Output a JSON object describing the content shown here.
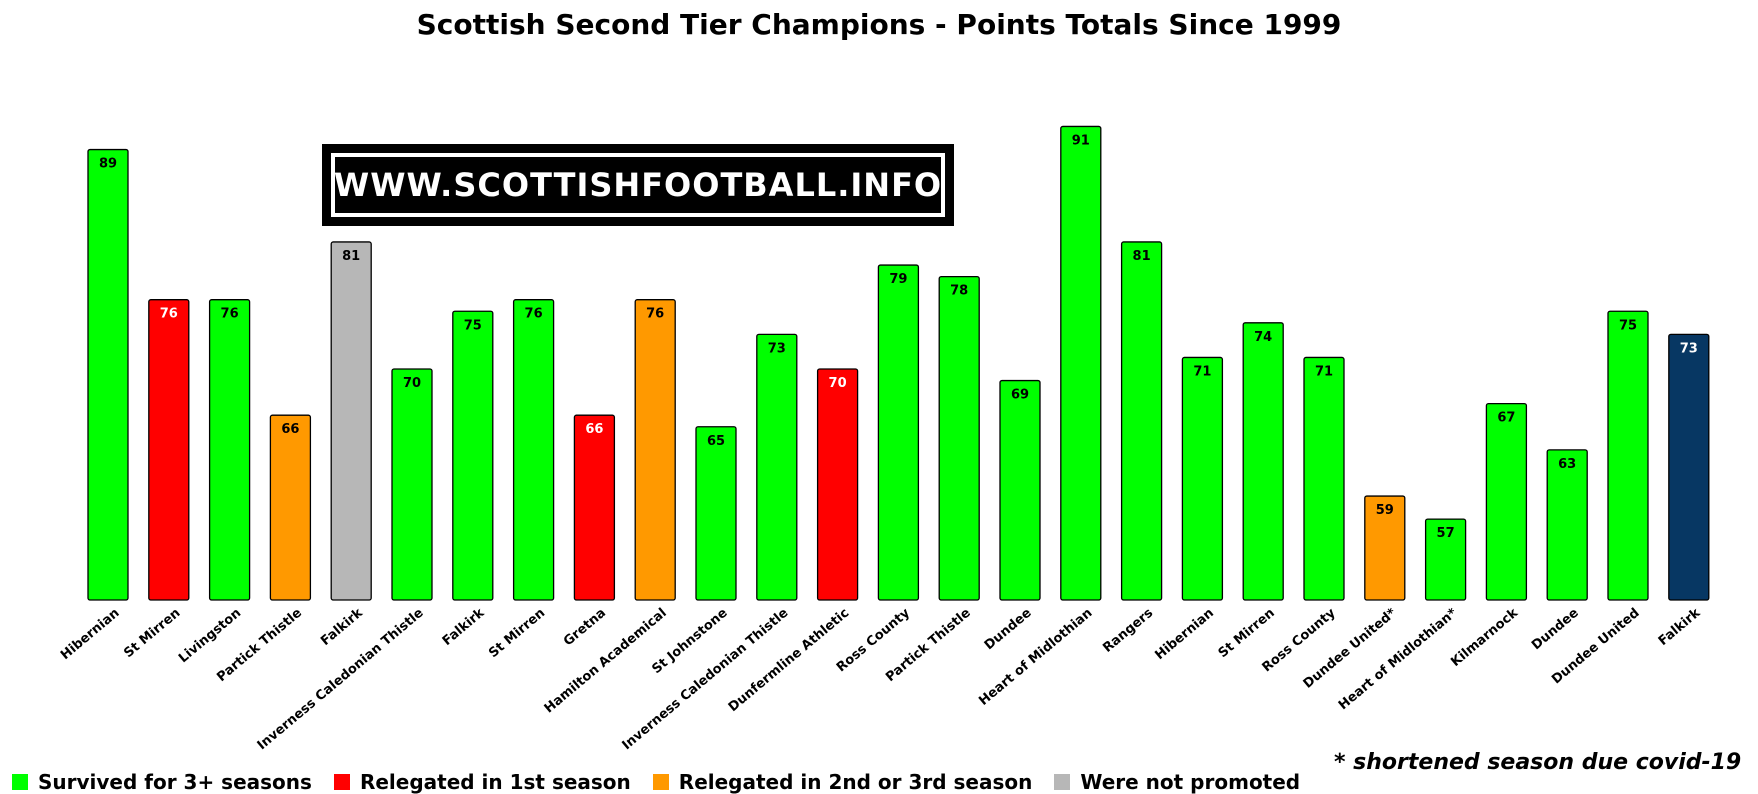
{
  "chart_data": {
    "type": "bar",
    "title": "Scottish Second Tier Champions - Points Totals Since 1999",
    "xlabel": "",
    "ylabel": "",
    "categories": [
      "Hibernian",
      "St Mirren",
      "Livingston",
      "Partick Thistle",
      "Falkirk",
      "Inverness Caledonian Thistle",
      "Falkirk",
      "St Mirren",
      "Gretna",
      "Hamilton Academical",
      "St Johnstone",
      "Inverness Caledonian Thistle",
      "Dunfermline Athletic",
      "Ross County",
      "Partick Thistle",
      "Dundee",
      "Heart of Midlothian",
      "Rangers",
      "Hibernian",
      "St Mirren",
      "Ross County",
      "Dundee United*",
      "Heart of Midlothian*",
      "Kilmarnock",
      "Dundee",
      "Dundee United",
      "Falkirk"
    ],
    "values": [
      89,
      76,
      76,
      66,
      81,
      70,
      75,
      76,
      66,
      76,
      65,
      73,
      70,
      79,
      78,
      69,
      91,
      81,
      71,
      74,
      71,
      59,
      57,
      67,
      63,
      75,
      73
    ],
    "status": [
      "survived",
      "relegated_1st",
      "survived",
      "relegated_2nd_3rd",
      "not_promoted",
      "survived",
      "survived",
      "survived",
      "relegated_1st",
      "relegated_2nd_3rd",
      "survived",
      "survived",
      "relegated_1st",
      "survived",
      "survived",
      "survived",
      "survived",
      "survived",
      "survived",
      "survived",
      "survived",
      "relegated_2nd_3rd",
      "survived",
      "survived",
      "survived",
      "survived",
      "current"
    ],
    "colors": {
      "survived": "#00ff00",
      "relegated_1st": "#ff0000",
      "relegated_2nd_3rd": "#ff9900",
      "not_promoted": "#b7b7b7",
      "current": "#073763"
    },
    "label_colors": {
      "survived": "#000000",
      "relegated_1st": "#ffffff",
      "relegated_2nd_3rd": "#000000",
      "not_promoted": "#000000",
      "current": "#ffffff"
    },
    "ylim": [
      50,
      92
    ],
    "grid": false,
    "legend": {
      "placement": "bottom-left",
      "items": [
        {
          "key": "survived",
          "label": "Survived for 3+ seasons"
        },
        {
          "key": "relegated_1st",
          "label": "Relegated in 1st season"
        },
        {
          "key": "relegated_2nd_3rd",
          "label": "Relegated in 2nd or 3rd season"
        },
        {
          "key": "not_promoted",
          "label": "Were not promoted"
        }
      ]
    },
    "annotations": {
      "footnote": "* shortened season due covid-19",
      "watermark": "WWW.SCOTTISHFOOTBALL.INFO"
    }
  }
}
